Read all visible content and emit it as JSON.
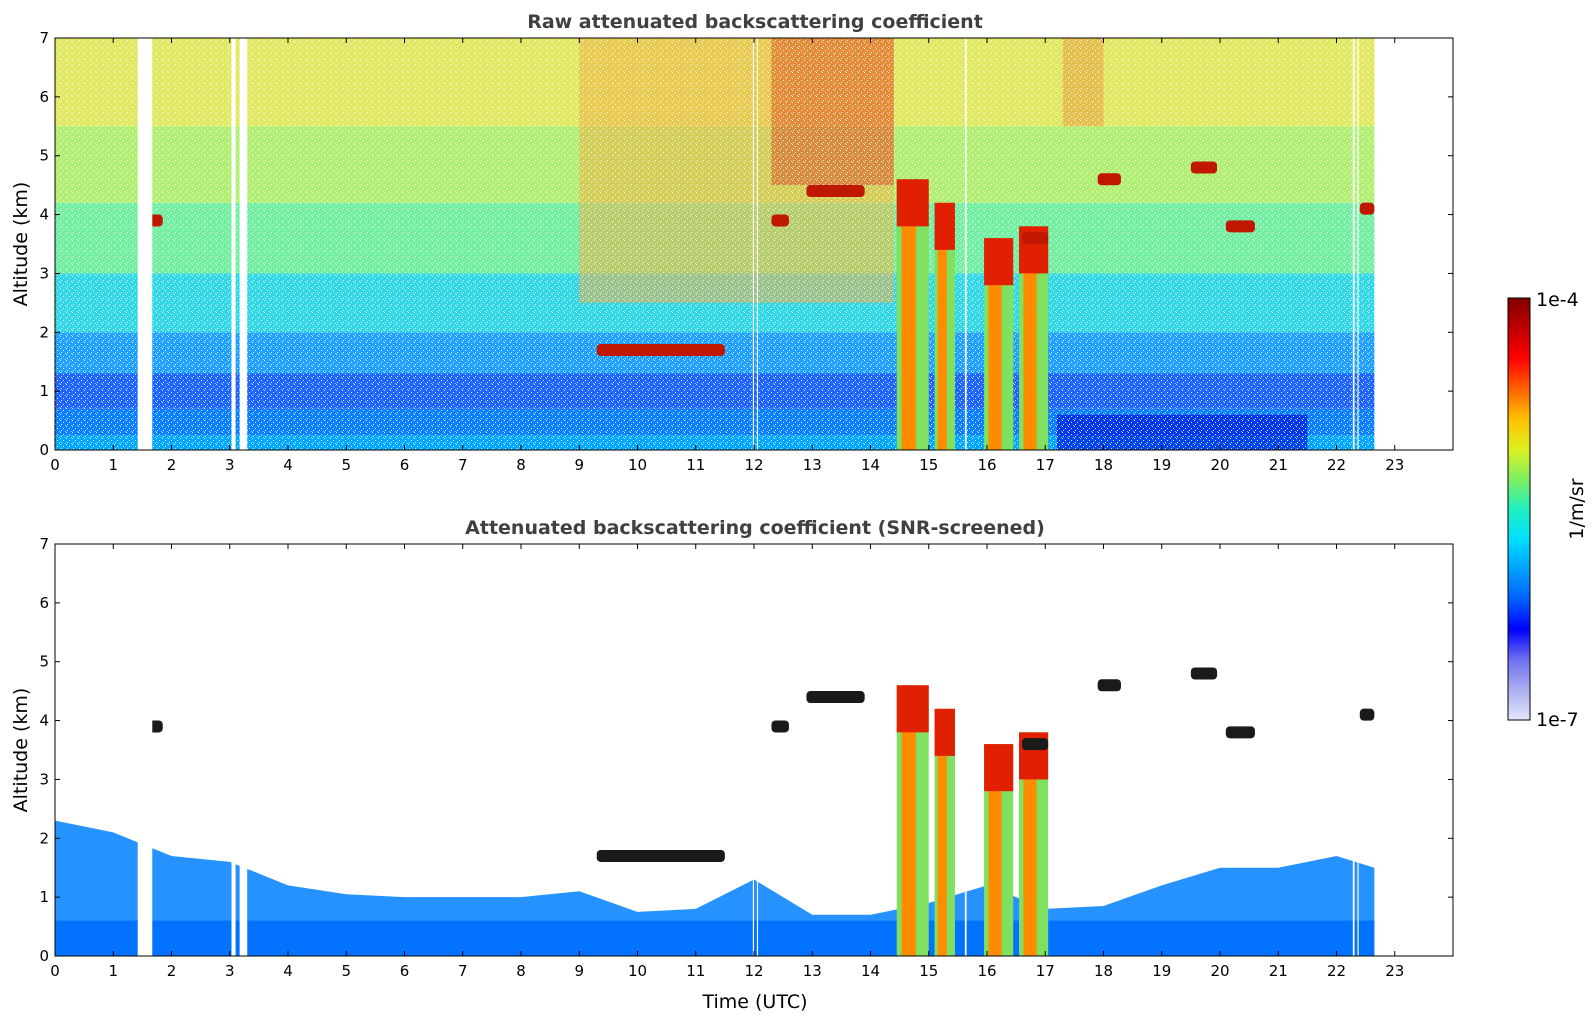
{
  "chart_data": [
    {
      "type": "heatmap",
      "title": "Raw attenuated backscattering coefficient",
      "xlabel": "",
      "ylabel": "Altitude (km)",
      "xlim": [
        0,
        24
      ],
      "ylim": [
        0,
        7
      ],
      "x_ticks": [
        "0",
        "1",
        "2",
        "3",
        "4",
        "5",
        "6",
        "7",
        "8",
        "9",
        "10",
        "11",
        "12",
        "13",
        "14",
        "15",
        "16",
        "17",
        "18",
        "19",
        "20",
        "21",
        "22",
        "23"
      ],
      "y_ticks": [
        "0",
        "1",
        "2",
        "3",
        "4",
        "5",
        "6",
        "7"
      ],
      "data_end_time": 22.65,
      "missing_data_gaps": [
        [
          1.42,
          1.67
        ],
        [
          3.03,
          3.1
        ],
        [
          3.17,
          3.3
        ],
        [
          11.98,
          12.0
        ],
        [
          12.05,
          12.07
        ],
        [
          15.62,
          15.65
        ],
        [
          22.28,
          22.31
        ],
        [
          22.36,
          22.38
        ]
      ],
      "features": [
        {
          "kind": "boundary-layer",
          "t0": 0,
          "t1": 22.65,
          "top_km": 1.3
        },
        {
          "kind": "thick-cloud",
          "t0": 14.45,
          "t1": 15.0,
          "base_km": 0,
          "top_km": 4.6
        },
        {
          "kind": "thick-cloud",
          "t0": 15.1,
          "t1": 15.45,
          "base_km": 0,
          "top_km": 4.2
        },
        {
          "kind": "thick-cloud",
          "t0": 15.95,
          "t1": 16.45,
          "base_km": 0,
          "top_km": 3.6
        },
        {
          "kind": "thick-cloud",
          "t0": 16.55,
          "t1": 17.05,
          "base_km": 0,
          "top_km": 3.8
        },
        {
          "kind": "elevated-layer",
          "t0": 1.55,
          "t1": 1.85,
          "alt_km": 3.9
        },
        {
          "kind": "elevated-layer",
          "t0": 9.3,
          "t1": 11.5,
          "alt_km": 1.7
        },
        {
          "kind": "elevated-layer",
          "t0": 12.3,
          "t1": 12.6,
          "alt_km": 3.9
        },
        {
          "kind": "elevated-layer",
          "t0": 12.9,
          "t1": 13.9,
          "alt_km": 4.4
        },
        {
          "kind": "elevated-layer",
          "t0": 16.6,
          "t1": 17.05,
          "alt_km": 3.6
        },
        {
          "kind": "elevated-layer",
          "t0": 17.9,
          "t1": 18.3,
          "alt_km": 4.6
        },
        {
          "kind": "elevated-layer",
          "t0": 19.5,
          "t1": 19.95,
          "alt_km": 4.8
        },
        {
          "kind": "elevated-layer",
          "t0": 20.1,
          "t1": 20.6,
          "alt_km": 3.8
        },
        {
          "kind": "elevated-layer",
          "t0": 22.4,
          "t1": 22.65,
          "alt_km": 4.1
        }
      ]
    },
    {
      "type": "heatmap",
      "title": "Attenuated backscattering coefficient (SNR-screened)",
      "xlabel": "Time (UTC)",
      "ylabel": "Altitude (km)",
      "xlim": [
        0,
        24
      ],
      "ylim": [
        0,
        7
      ],
      "x_ticks": [
        "0",
        "1",
        "2",
        "3",
        "4",
        "5",
        "6",
        "7",
        "8",
        "9",
        "10",
        "11",
        "12",
        "13",
        "14",
        "15",
        "16",
        "17",
        "18",
        "19",
        "20",
        "21",
        "22",
        "23"
      ],
      "y_ticks": [
        "0",
        "1",
        "2",
        "3",
        "4",
        "5",
        "6",
        "7"
      ],
      "data_end_time": 22.65,
      "boundary_layer_top_km": [
        [
          0,
          2.3
        ],
        [
          1,
          2.1
        ],
        [
          2,
          1.7
        ],
        [
          3,
          1.6
        ],
        [
          4,
          1.2
        ],
        [
          5,
          1.05
        ],
        [
          6,
          1.0
        ],
        [
          7,
          1.0
        ],
        [
          8,
          1.0
        ],
        [
          9,
          1.1
        ],
        [
          10,
          0.75
        ],
        [
          11,
          0.8
        ],
        [
          12,
          1.3
        ],
        [
          13,
          0.7
        ],
        [
          14,
          0.7
        ],
        [
          15,
          0.9
        ],
        [
          16,
          1.2
        ],
        [
          17,
          0.8
        ],
        [
          18,
          0.85
        ],
        [
          19,
          1.2
        ],
        [
          20,
          1.5
        ],
        [
          21,
          1.5
        ],
        [
          22,
          1.7
        ],
        [
          22.65,
          1.5
        ]
      ]
    }
  ],
  "colorbar": {
    "label": "1/m/sr",
    "max_label": "1e-4",
    "min_label": "1e-7",
    "scale": "log",
    "colormap": "jet",
    "colors": [
      "#e6e6f8",
      "#aab0f0",
      "#7070f0",
      "#0000ff",
      "#0060ff",
      "#00a0ff",
      "#00e0ff",
      "#20f0c0",
      "#80f060",
      "#e0f020",
      "#ffc000",
      "#ff6000",
      "#ff0000",
      "#c00000",
      "#800000"
    ]
  }
}
